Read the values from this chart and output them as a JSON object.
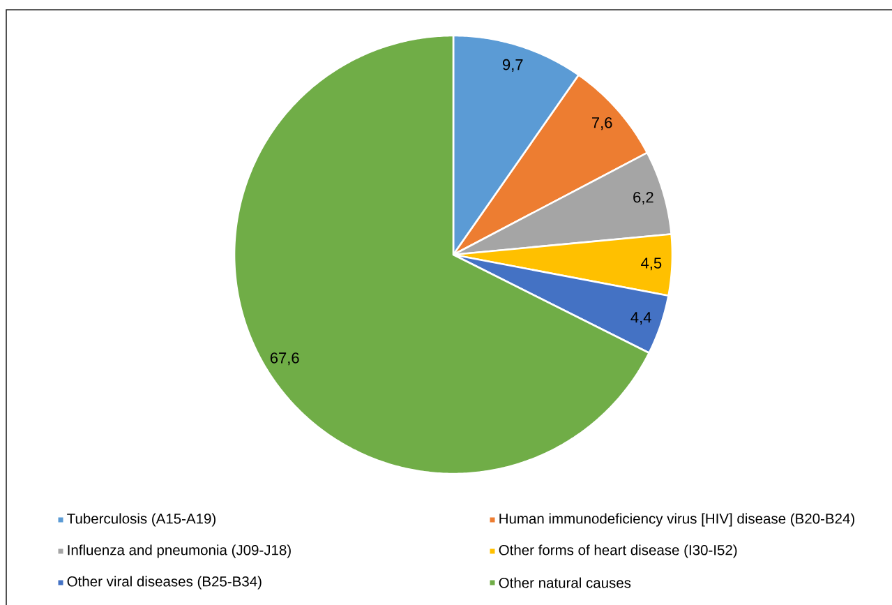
{
  "chart_data": {
    "type": "pie",
    "categories": [
      "Tuberculosis (A15-A19)",
      "Human immunodeficiency virus [HIV] disease (B20-B24)",
      "Influenza and pneumonia (J09-J18)",
      "Other forms of heart disease (I30-I52)",
      "Other viral diseases (B25-B34)",
      "Other natural causes"
    ],
    "values": [
      9.7,
      7.6,
      6.2,
      4.5,
      4.4,
      67.6
    ],
    "value_labels": [
      "9,7",
      "7,6",
      "6,2",
      "4,5",
      "4,4",
      "67,6"
    ],
    "colors": [
      "#5b9bd5",
      "#ed7d31",
      "#a5a5a5",
      "#ffc000",
      "#4472c4",
      "#70ad47"
    ],
    "legend": "bottom"
  }
}
